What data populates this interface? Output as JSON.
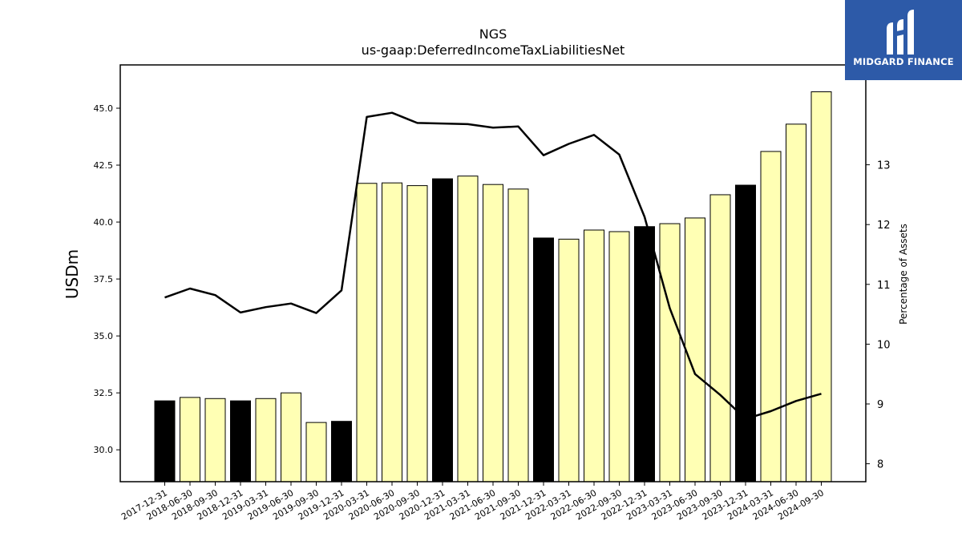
{
  "logo": {
    "text": "MIDGARD FINANCE",
    "icon": "midgard-m-logo-icon"
  },
  "chart_data": {
    "type": "bar",
    "title": "NGS",
    "subtitle": "us-gaap:DeferredIncomeTaxLiabilitiesNet",
    "ylabel": "USDm",
    "y2label": "Percentage of Assets",
    "ylim": [
      28.6,
      46.9
    ],
    "y2lim": [
      7.7,
      14.67
    ],
    "yticks": [
      "30.0",
      "32.5",
      "35.0",
      "37.5",
      "40.0",
      "42.5",
      "45.0"
    ],
    "y2ticks": [
      "8",
      "9",
      "10",
      "11",
      "12",
      "13"
    ],
    "categories": [
      "2017-12-31",
      "2018-06-30",
      "2018-09-30",
      "2018-12-31",
      "2019-03-31",
      "2019-06-30",
      "2019-09-30",
      "2019-12-31",
      "2020-03-31",
      "2020-06-30",
      "2020-09-30",
      "2020-12-31",
      "2021-03-31",
      "2021-06-30",
      "2021-09-30",
      "2021-12-31",
      "2022-03-31",
      "2022-06-30",
      "2022-09-30",
      "2022-12-31",
      "2023-03-31",
      "2023-06-30",
      "2023-09-30",
      "2023-12-31",
      "2024-03-31",
      "2024-06-30",
      "2024-09-30"
    ],
    "series": [
      {
        "kind": "bar",
        "values": [
          32.15,
          32.3,
          32.25,
          32.15,
          32.25,
          32.5,
          31.2,
          31.25,
          41.7,
          41.72,
          41.6,
          41.9,
          42.02,
          41.65,
          41.45,
          39.3,
          39.25,
          39.65,
          39.58,
          39.8,
          39.93,
          40.18,
          41.2,
          41.62,
          43.1,
          44.3,
          45.72
        ],
        "year_end": [
          true,
          false,
          false,
          true,
          false,
          false,
          false,
          true,
          false,
          false,
          false,
          true,
          false,
          false,
          false,
          true,
          false,
          false,
          false,
          true,
          false,
          false,
          false,
          true,
          false,
          false,
          false
        ]
      },
      {
        "kind": "line",
        "axis": "right",
        "values": [
          10.78,
          10.93,
          10.82,
          10.53,
          10.62,
          10.68,
          10.52,
          10.9,
          13.8,
          13.87,
          13.7,
          13.69,
          13.68,
          13.62,
          13.64,
          13.16,
          13.35,
          13.5,
          13.17,
          12.13,
          10.6,
          9.5,
          9.15,
          8.75,
          8.88,
          9.05,
          9.17
        ]
      }
    ],
    "colors": {
      "year_end_bar": "#000000",
      "quarter_bar": "#ffffb4",
      "line": "#000000"
    },
    "grid": false,
    "legend": "none"
  }
}
